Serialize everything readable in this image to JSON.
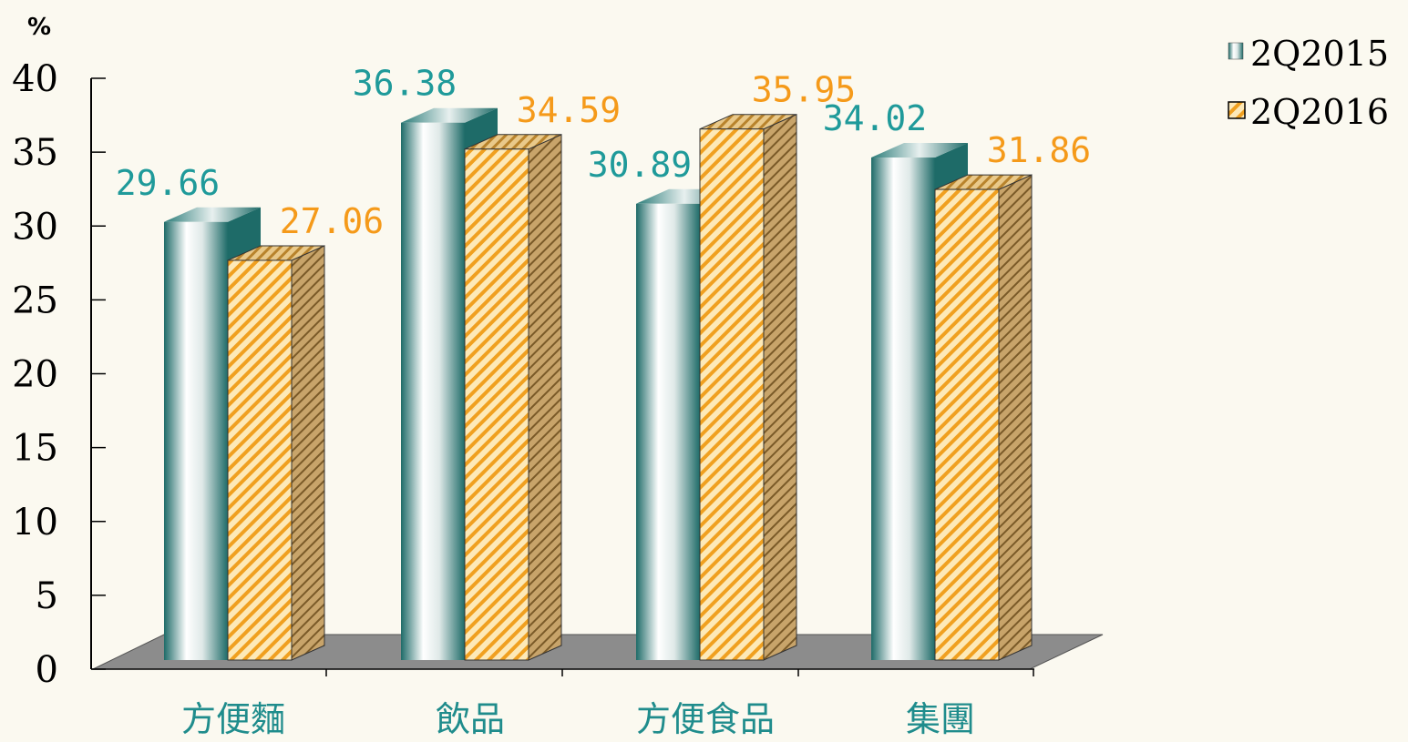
{
  "chart_data": {
    "type": "bar",
    "unit_label": "%",
    "categories": [
      "方便麵",
      "飲品",
      "方便食品",
      "集團"
    ],
    "series": [
      {
        "name": "2Q2015",
        "values": [
          29.66,
          36.38,
          30.89,
          34.02
        ]
      },
      {
        "name": "2Q2016",
        "values": [
          27.06,
          34.59,
          35.95,
          31.86
        ]
      }
    ],
    "value_labels": [
      [
        "29.66",
        "36.38",
        "30.89",
        "34.02"
      ],
      [
        "27.06",
        "34.59",
        "35.95",
        "31.86"
      ]
    ],
    "ylim": [
      0,
      40
    ],
    "yticks": [
      0,
      5,
      10,
      15,
      20,
      25,
      30,
      35,
      40
    ],
    "grid": false,
    "legend_position": "top-right",
    "colors": {
      "series_2015_label": "#1f9a9a",
      "series_2016_label": "#f59a1a",
      "category_label": "#1f8c8c",
      "bar_2015_dark": "#1e6b68",
      "bar_2015_light": "#ffffff",
      "bar_2016_fill": "#fde9b8",
      "bar_2016_stripe": "#f0a020",
      "floor": "#8c8c8c",
      "axis": "#000000"
    }
  }
}
